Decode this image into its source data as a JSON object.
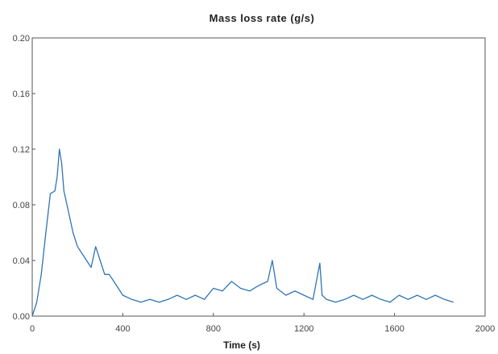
{
  "chart_data": {
    "type": "line",
    "title": "Mass loss rate (g/s)",
    "xlabel": "Time (s)",
    "ylabel": "",
    "xlim": [
      0,
      2000
    ],
    "ylim": [
      0,
      0.2
    ],
    "xticks": [
      "0",
      "400",
      "800",
      "1200",
      "1600",
      "2000"
    ],
    "yticks": [
      "0.00",
      "0.04",
      "0.08",
      "0.12",
      "0.16",
      "0.20"
    ],
    "grid": false,
    "line_color": "#2e75b6",
    "series": [
      {
        "x": [
          0,
          20,
          40,
          60,
          80,
          100,
          110,
          120,
          130,
          140,
          160,
          180,
          200,
          220,
          240,
          260,
          280,
          300,
          320,
          340,
          360,
          380,
          400,
          440,
          480,
          520,
          560,
          600,
          640,
          680,
          720,
          760,
          800,
          840,
          880,
          920,
          960,
          1000,
          1040,
          1060,
          1080,
          1120,
          1160,
          1200,
          1240,
          1270,
          1280,
          1300,
          1340,
          1380,
          1420,
          1460,
          1500,
          1540,
          1580,
          1620,
          1660,
          1700,
          1740,
          1780,
          1820,
          1860
        ],
        "y": [
          0.0,
          0.01,
          0.03,
          0.06,
          0.088,
          0.09,
          0.1,
          0.12,
          0.11,
          0.09,
          0.075,
          0.06,
          0.05,
          0.045,
          0.04,
          0.035,
          0.05,
          0.04,
          0.03,
          0.03,
          0.025,
          0.02,
          0.015,
          0.012,
          0.01,
          0.012,
          0.01,
          0.012,
          0.015,
          0.012,
          0.015,
          0.012,
          0.02,
          0.018,
          0.025,
          0.02,
          0.018,
          0.022,
          0.025,
          0.04,
          0.02,
          0.015,
          0.018,
          0.015,
          0.012,
          0.038,
          0.015,
          0.012,
          0.01,
          0.012,
          0.015,
          0.012,
          0.015,
          0.012,
          0.01,
          0.015,
          0.012,
          0.015,
          0.012,
          0.015,
          0.012,
          0.01
        ]
      }
    ]
  }
}
